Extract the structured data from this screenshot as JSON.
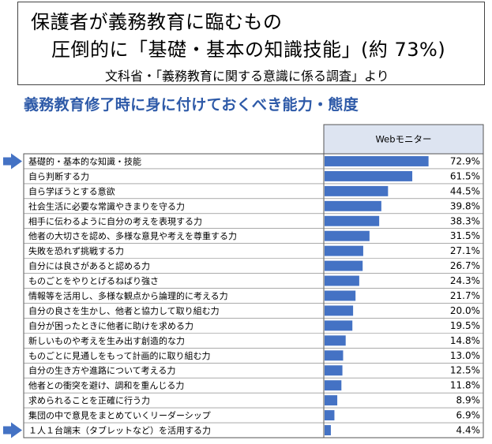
{
  "title": {
    "line1": "保護者が義務教育に臨むもの",
    "line2": "圧倒的に「基礎・基本の知識技能」(約 73%)",
    "line3": "文科省・「義務教育に関する意識に係る調査」より"
  },
  "subtitle": "義務教育修了時に身に付けておくべき能力・態度",
  "chart_data": {
    "type": "bar",
    "orientation": "horizontal",
    "series": [
      {
        "name": "Webモニター",
        "values": [
          72.9,
          61.5,
          44.5,
          39.8,
          38.3,
          31.5,
          27.1,
          26.7,
          24.3,
          21.7,
          20.0,
          19.5,
          14.8,
          13.0,
          12.5,
          11.8,
          8.9,
          6.9,
          4.4
        ]
      }
    ],
    "categories": [
      "基礎的・基本的な知識・技能",
      "自ら判断する力",
      "自ら学ぼうとする意欲",
      "社会生活に必要な常識やきまりを守る力",
      "相手に伝わるように自分の考えを表現する力",
      "他者の大切さを認め、多様な意見や考えを尊重する力",
      "失敗を恐れず挑戦する力",
      "自分には良さがあると認める力",
      "ものごとをやりとげるねばり強さ",
      "情報等を活用し、多様な観点から論理的に考える力",
      "自分の良さを生かし、他者と協力して取り組む力",
      "自分が困ったときに他者に助けを求める力",
      "新しいものや考えを生み出す創造的な力",
      "ものごとに見通しをもって計画的に取り組む力",
      "自分の生き方や進路について考える力",
      "他者との衝突を避け、調和を重んじる力",
      "求められることを正確に行う力",
      "集団の中で意見をまとめていくリーダーシップ",
      "１人１台端末（タブレットなど）を活用する力"
    ],
    "value_labels": [
      "72.9%",
      "61.5%",
      "44.5%",
      "39.8%",
      "38.3%",
      "31.5%",
      "27.1%",
      "26.7%",
      "24.3%",
      "21.7%",
      "20.0%",
      "19.5%",
      "14.8%",
      "13.0%",
      "12.5%",
      "11.8%",
      "8.9%",
      "6.9%",
      "4.4%"
    ],
    "column_header": "Webモニター",
    "highlighted_rows": [
      0,
      18
    ],
    "xlim": [
      0,
      100
    ]
  },
  "colors": {
    "bar": "#4472c4",
    "header_bg": "#dde4f1",
    "subtitle": "#2e5aa8",
    "arrow": "#4472c4"
  }
}
